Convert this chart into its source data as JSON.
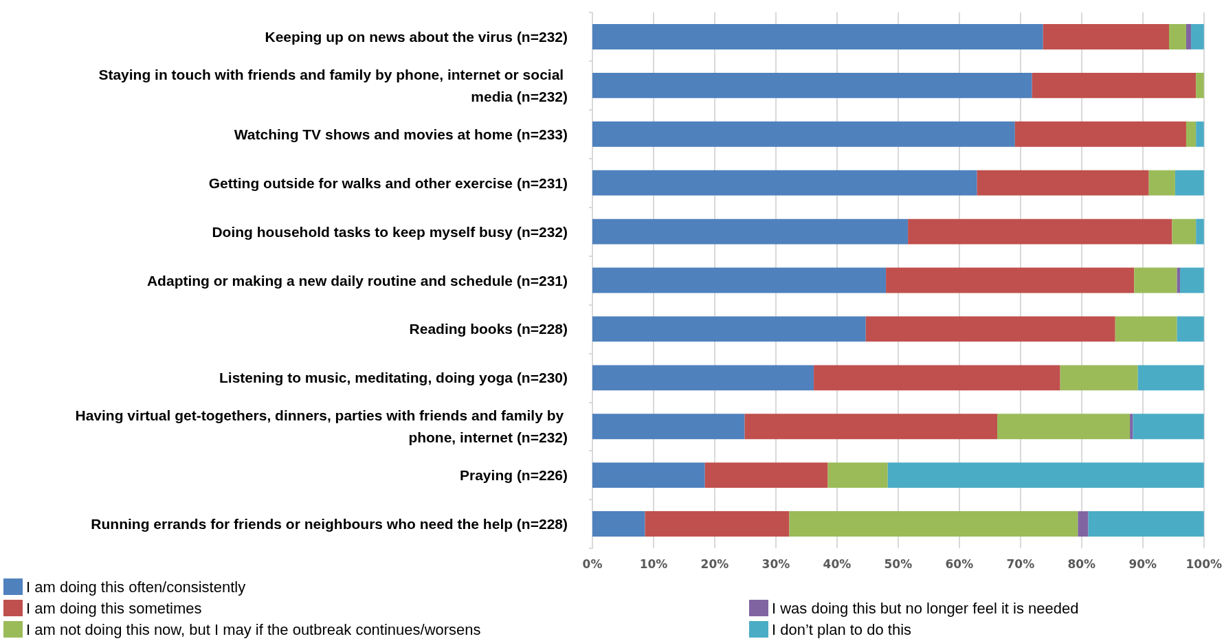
{
  "chart_data": {
    "type": "bar",
    "orientation": "horizontal",
    "stacked": true,
    "categories": [
      "Keeping up on news about the virus (n=232)",
      "Staying in touch with friends and family by phone, internet or social media (n=232)",
      "Watching TV shows and movies at home (n=233)",
      "Getting outside for walks and other exercise (n=231)",
      "Doing household tasks to keep myself busy (n=232)",
      "Adapting or making a new daily routine and schedule (n=231)",
      "Reading books (n=228)",
      "Listening to music, meditating, doing yoga (n=230)",
      "Having virtual get-togethers, dinners, parties with friends and family by phone, internet (n=232)",
      "Praying (n=226)",
      "Running errands for friends or neighbours who need the help (n=228)"
    ],
    "series": [
      {
        "name": "I am doing this often/consistently",
        "color": "#4f81bd",
        "values": [
          73.7,
          71.9,
          69.1,
          62.9,
          51.6,
          48.0,
          44.7,
          36.2,
          24.9,
          18.4,
          8.6
        ]
      },
      {
        "name": "I am doing this sometimes",
        "color": "#c0504d",
        "values": [
          20.6,
          26.8,
          28.0,
          28.1,
          43.2,
          40.6,
          40.8,
          40.3,
          41.3,
          20.1,
          23.6
        ]
      },
      {
        "name": "I am not doing this now, but I may if the outbreak continues/worsens",
        "color": "#9bbb59",
        "values": [
          2.8,
          1.3,
          1.6,
          4.3,
          3.9,
          7.0,
          10.1,
          12.7,
          21.7,
          9.8,
          47.2
        ]
      },
      {
        "name": "I was doing this but no longer feel it is needed",
        "color": "#8064a2",
        "values": [
          0.8,
          0,
          0,
          0,
          0,
          0.5,
          0,
          0,
          0.5,
          0,
          1.7
        ]
      },
      {
        "name": "I don’t plan to do this",
        "color": "#4bacc6",
        "values": [
          2.1,
          0,
          1.3,
          4.7,
          1.3,
          3.9,
          4.4,
          10.8,
          11.6,
          51.7,
          18.9
        ]
      }
    ],
    "xlim": [
      0,
      100
    ],
    "xticks": [
      {
        "value": 0,
        "label": "0%"
      },
      {
        "value": 10,
        "label": "10%"
      },
      {
        "value": 20,
        "label": "20%"
      },
      {
        "value": 30,
        "label": "30%"
      },
      {
        "value": 40,
        "label": "40%"
      },
      {
        "value": 50,
        "label": "50%"
      },
      {
        "value": 60,
        "label": "60%"
      },
      {
        "value": 70,
        "label": "70%"
      },
      {
        "value": 80,
        "label": "80%"
      },
      {
        "value": 90,
        "label": "90%"
      },
      {
        "value": 100,
        "label": "100%"
      }
    ],
    "grid": "x",
    "legend": "bottom"
  }
}
